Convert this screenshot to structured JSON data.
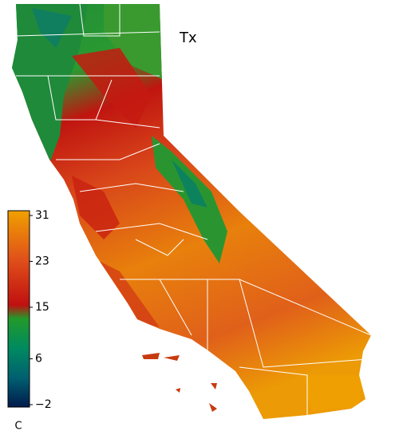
{
  "map": {
    "title": "Tx",
    "colorbar": {
      "range": [
        -2,
        31
      ],
      "ticks": [
        31,
        23,
        15,
        6,
        {
          "value": -2,
          "label": "−2"
        }
      ],
      "unit": "C"
    }
  }
}
